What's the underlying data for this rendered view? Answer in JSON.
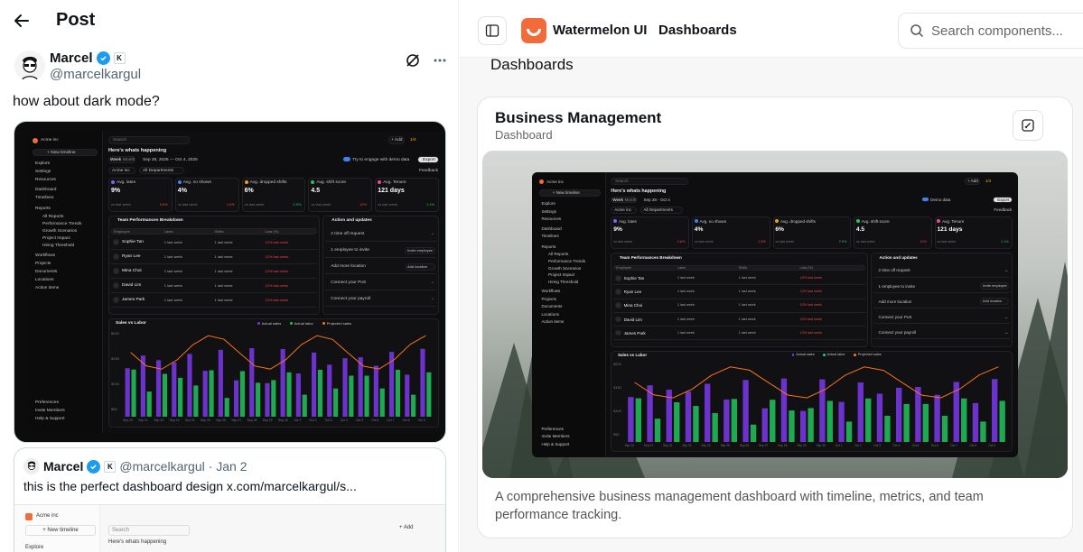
{
  "post": {
    "header_title": "Post",
    "author_name": "Marcel",
    "author_handle": "@marcelkargul",
    "affiliate_badge": "K",
    "text": "how about dark mode?"
  },
  "quote": {
    "author_name": "Marcel",
    "author_handle": "@marcelkargul",
    "date": "· Jan 2",
    "text": "this is the perfect dashboard design  x.com/marcelkargul/s...",
    "mini": {
      "org": "Acme inc",
      "new_timeline": "+ New timeline",
      "explore": "Explore",
      "search": "Search",
      "heading": "Here's whats happening",
      "add": "+ Add"
    }
  },
  "dashboard": {
    "org": "Acme inc",
    "new_timeline": "+ New timeline",
    "search": "Search",
    "add": "+ Add",
    "page_count": "1/4",
    "nav": [
      "Explore",
      "Settings",
      "Resources",
      "Dashboard",
      "Timelines",
      "Reports",
      "All Reports",
      "Performance Trends",
      "Growth Scenarios",
      "Project Impact",
      "Hiring Threshold",
      "Workflows",
      "Projects",
      "Documents",
      "Locations",
      "Action items"
    ],
    "nav_bottom": [
      "Preferences",
      "Invite Members",
      "Help & Support"
    ],
    "heading": "Here's whats happening",
    "week_tab": "Week",
    "month_tab": "Month",
    "date_range_long": "Sep 28, 2025  —  Oct 4, 2025",
    "date_range_short": "Sep 28 - Oct 4",
    "demo_long": "Try to engage with demo data",
    "demo_short": "Demo data",
    "export": "Export",
    "feedback": "Feedback",
    "filter_org": "Acme inc",
    "filter_dept": "All Departments",
    "metrics": [
      {
        "label": "Avg. lates",
        "value": "9%",
        "delta": "3.6%"
      },
      {
        "label": "Avg. no shows",
        "value": "4%",
        "delta": "2.6%"
      },
      {
        "label": "Avg. dropped shifts",
        "value": "6%",
        "delta": "2.9%"
      },
      {
        "label": "Avg. shift score",
        "value": "4.5",
        "delta": "12%"
      },
      {
        "label": "Avg. Tenure",
        "value": "121 days",
        "delta": "1.1%"
      }
    ],
    "vs_last_week": "vs last week",
    "team_title": "Team Performances Breakdown",
    "team_cols": [
      "Employee",
      "Lates",
      "Shifts",
      "Lata (%)"
    ],
    "team_rows": [
      "Sophie Tan",
      "Ryan Lee",
      "Mina Choi",
      "David Lim",
      "James Park"
    ],
    "row_cells": [
      "1 last week",
      "1 last week",
      "12% last week"
    ],
    "actions_title": "Action and updates",
    "actions": [
      "2 time off request",
      "1 employee to invite",
      "Add more location",
      "Connect your PoS",
      "Connect your payroll"
    ],
    "action_buttons": [
      "Invite employee",
      "Add location"
    ],
    "sales_title": "Sales vs Labor",
    "legend": [
      "Actual sales",
      "Actual labor",
      "Projected sales"
    ],
    "y_ticks": [
      "$200",
      "$150",
      "$100",
      "$50"
    ],
    "x_ticks": [
      "Sep 20",
      "Sep 21",
      "Sep 22",
      "Sep 23",
      "Sep 24",
      "Sep 25",
      "Sep 26",
      "Sep 27",
      "Sep 28",
      "Sep 29",
      "Sep 30",
      "Oct 1",
      "Oct 2",
      "Oct 3",
      "Oct 4",
      "Oct 5",
      "Oct 6",
      "Oct 7",
      "Oct 8",
      "Oct 9"
    ]
  },
  "right": {
    "brand": "Watermelon UI",
    "nav": "Dashboards",
    "search_placeholder": "Search components...",
    "breadcrumb": "Dashboards",
    "card_title": "Business Management",
    "card_subtitle": "Dashboard",
    "card_description": "A comprehensive business management dashboard with timeline, metrics, and team performance tracking."
  },
  "colors": {
    "x_blue": "#1d9bf0",
    "brand_orange": "#f26b3a",
    "sales_purple": "#7c3aed",
    "labor_green": "#22c55e",
    "projected_orange": "#f97316"
  }
}
